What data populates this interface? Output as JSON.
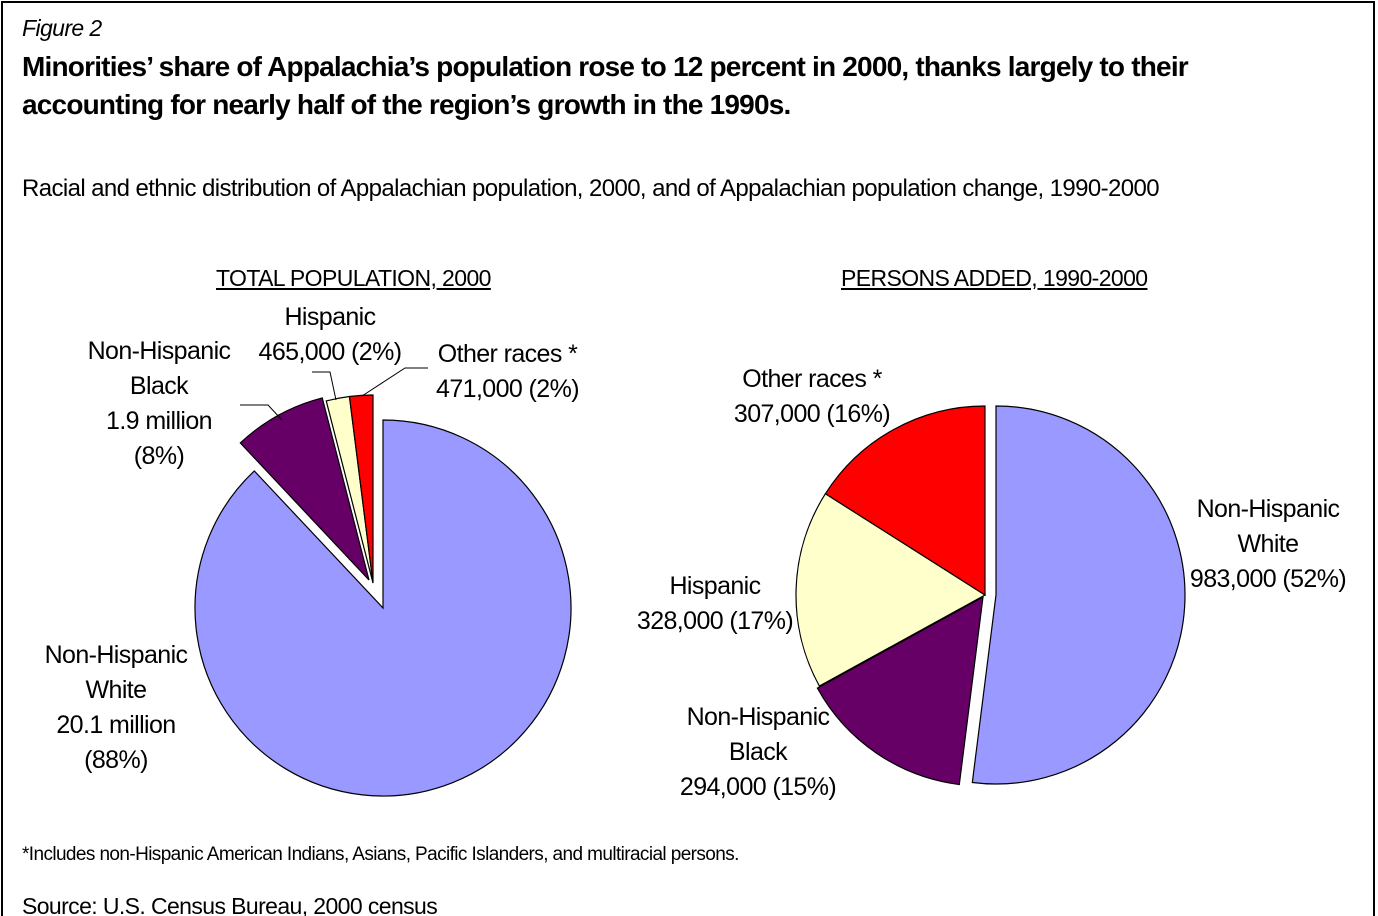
{
  "figure_label": "Figure 2",
  "title_line1": "Minorities’ share of Appalachia’s population rose to 12 percent in 2000, thanks largely to their",
  "title_line2": "accounting for nearly half of the region’s growth in the 1990s.",
  "subtitle": "Racial and ethnic distribution of Appalachian population, 2000, and of Appalachian population change, 1990-2000",
  "footnote": "*Includes non-Hispanic American Indians, Asians, Pacific Islanders, and multiracial persons.",
  "source": "Source: U.S. Census Bureau, 2000 census",
  "colors": {
    "white": "#9999FF",
    "black": "#660066",
    "hispanic": "#FFFFCC",
    "other": "#FF0000"
  },
  "chart_data": [
    {
      "type": "pie",
      "title": "TOTAL POPULATION, 2000",
      "categories": [
        "Non-Hispanic White",
        "Non-Hispanic Black",
        "Hispanic",
        "Other races *"
      ],
      "values": [
        88,
        8,
        2,
        2
      ],
      "labels": [
        [
          "Non-Hispanic",
          "White",
          "20.1 million",
          "(88%)"
        ],
        [
          "Non-Hispanic",
          "Black",
          "1.9 million",
          "(8%)"
        ],
        [
          "Hispanic",
          "465,000 (2%)"
        ],
        [
          "Other races *",
          "471,000 (2%)"
        ]
      ]
    },
    {
      "type": "pie",
      "title": "PERSONS ADDED, 1990-2000",
      "categories": [
        "Non-Hispanic White",
        "Non-Hispanic Black",
        "Hispanic",
        "Other races *"
      ],
      "values": [
        52,
        15,
        17,
        16
      ],
      "labels": [
        [
          "Non-Hispanic",
          "White",
          "983,000 (52%)"
        ],
        [
          "Non-Hispanic",
          "Black",
          "294,000 (15%)"
        ],
        [
          "Hispanic",
          "328,000 (17%)"
        ],
        [
          "Other races *",
          "307,000 (16%)"
        ]
      ]
    }
  ]
}
